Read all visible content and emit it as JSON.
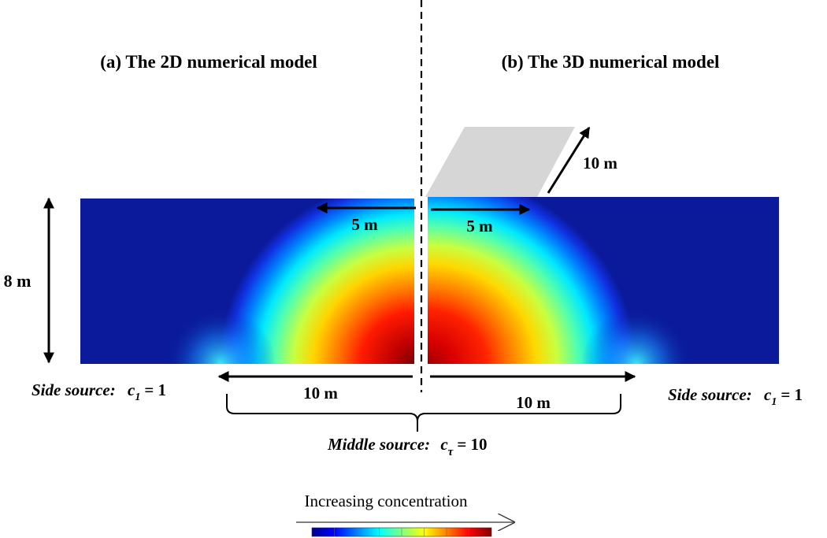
{
  "panels": {
    "left": {
      "title": "(a) The 2D numerical model"
    },
    "right": {
      "title": "(b) The 3D numerical model"
    }
  },
  "dimensions": {
    "depth": "8 m",
    "half_width_left": "5 m",
    "half_width_right": "5 m",
    "extent_left": "10 m",
    "extent_right": "10 m",
    "depth_3d": "10 m"
  },
  "sources": {
    "side_left": {
      "label": "Side source:",
      "symbol": "c",
      "subscript": "1",
      "value": "= 1"
    },
    "side_right": {
      "label": "Side source:",
      "symbol": "c",
      "subscript": "1",
      "value": "= 1"
    },
    "middle": {
      "label": "Middle source:",
      "symbol": "c",
      "subscript": "τ",
      "value": "= 10"
    }
  },
  "colorbar": {
    "label": "Increasing concentration",
    "colors": [
      "#00008f",
      "#0000ff",
      "#0080ff",
      "#00ffff",
      "#80ff80",
      "#ffff00",
      "#ff8000",
      "#ff0000",
      "#800000"
    ]
  },
  "colors": {
    "low": "#0a1a9a",
    "plane3d": "#d6d6d6"
  }
}
